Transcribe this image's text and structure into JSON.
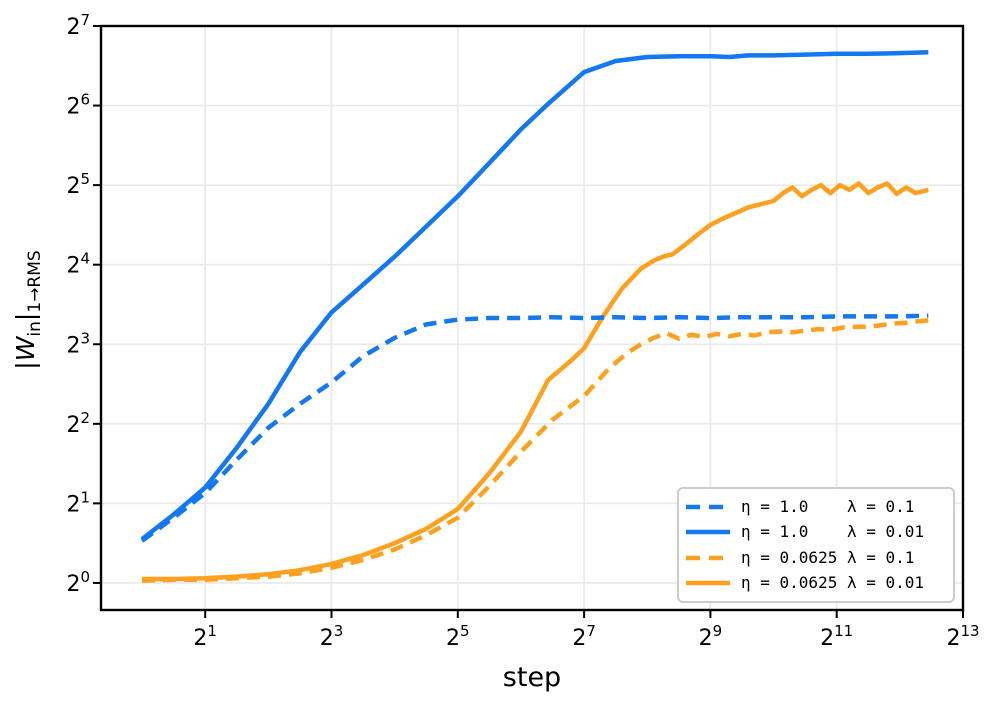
{
  "chart_data": {
    "type": "line",
    "title": "",
    "xlabel": "step",
    "ylabel": "|W_in|_{1→RMS}",
    "ylabel_parts": {
      "bar1": "|",
      "w": "W",
      "sub_in": "in",
      "bar2": "|",
      "sub_norm": "1→RMS"
    },
    "xscale": "log2",
    "yscale": "log2",
    "grid": true,
    "legend_position": "lower right",
    "tick_base": "2",
    "x_tick_exponents": [
      1,
      3,
      5,
      7,
      9,
      11,
      13
    ],
    "y_tick_exponents": [
      0,
      1,
      2,
      3,
      4,
      5,
      6,
      7
    ],
    "xlim_exp": [
      -0.65,
      13
    ],
    "ylim_exp": [
      -0.34,
      7
    ],
    "colors": {
      "blue": "#1478F0",
      "orange": "#FFA01E",
      "grid": "#E9E9E9",
      "spine": "#000000",
      "text": "#000000"
    },
    "series": [
      {
        "name": "eta-1.0-lambda-0.01",
        "label": "η = 1.0    λ = 0.01",
        "color_key": "blue",
        "style": "solid",
        "points_log2": [
          [
            0,
            0.55
          ],
          [
            0.5,
            0.86
          ],
          [
            1,
            1.2
          ],
          [
            1.5,
            1.7
          ],
          [
            2,
            2.25
          ],
          [
            2.5,
            2.9
          ],
          [
            3,
            3.4
          ],
          [
            3.5,
            3.75
          ],
          [
            4,
            4.1
          ],
          [
            4.5,
            4.48
          ],
          [
            5,
            4.86
          ],
          [
            5.5,
            5.28
          ],
          [
            6,
            5.7
          ],
          [
            6.4,
            6.0
          ],
          [
            7,
            6.42
          ],
          [
            7.5,
            6.56
          ],
          [
            8,
            6.61
          ],
          [
            8.5,
            6.62
          ],
          [
            9,
            6.62
          ],
          [
            9.3,
            6.61
          ],
          [
            9.6,
            6.63
          ],
          [
            10,
            6.63
          ],
          [
            10.5,
            6.64
          ],
          [
            11,
            6.65
          ],
          [
            11.5,
            6.65
          ],
          [
            12,
            6.66
          ],
          [
            12.45,
            6.67
          ]
        ]
      },
      {
        "name": "eta-0.0625-lambda-0.01",
        "label": "η = 0.0625 λ = 0.01",
        "color_key": "orange",
        "style": "solid",
        "points_log2": [
          [
            0,
            0.05
          ],
          [
            0.5,
            0.05
          ],
          [
            1,
            0.06
          ],
          [
            1.5,
            0.08
          ],
          [
            2,
            0.11
          ],
          [
            2.5,
            0.16
          ],
          [
            3,
            0.24
          ],
          [
            3.5,
            0.35
          ],
          [
            4,
            0.5
          ],
          [
            4.5,
            0.68
          ],
          [
            5,
            0.93
          ],
          [
            5.5,
            1.38
          ],
          [
            6,
            1.9
          ],
          [
            6.43,
            2.55
          ],
          [
            6.8,
            2.8
          ],
          [
            7,
            2.95
          ],
          [
            7.3,
            3.35
          ],
          [
            7.6,
            3.7
          ],
          [
            7.9,
            3.95
          ],
          [
            8.1,
            4.05
          ],
          [
            8.25,
            4.1
          ],
          [
            8.4,
            4.13
          ],
          [
            8.6,
            4.25
          ],
          [
            8.8,
            4.38
          ],
          [
            9,
            4.5
          ],
          [
            9.2,
            4.58
          ],
          [
            9.4,
            4.65
          ],
          [
            9.6,
            4.72
          ],
          [
            9.8,
            4.76
          ],
          [
            10,
            4.8
          ],
          [
            10.15,
            4.9
          ],
          [
            10.3,
            4.97
          ],
          [
            10.45,
            4.86
          ],
          [
            10.6,
            4.94
          ],
          [
            10.75,
            5.0
          ],
          [
            10.9,
            4.9
          ],
          [
            11.05,
            5.0
          ],
          [
            11.2,
            4.94
          ],
          [
            11.35,
            5.02
          ],
          [
            11.5,
            4.9
          ],
          [
            11.65,
            4.97
          ],
          [
            11.8,
            5.02
          ],
          [
            11.95,
            4.89
          ],
          [
            12.1,
            4.97
          ],
          [
            12.25,
            4.9
          ],
          [
            12.45,
            4.94
          ]
        ]
      },
      {
        "name": "eta-1.0-lambda-0.1",
        "label": "η = 1.0    λ = 0.1",
        "color_key": "blue",
        "style": "dashed",
        "points_log2": [
          [
            0,
            0.53
          ],
          [
            0.5,
            0.82
          ],
          [
            1,
            1.13
          ],
          [
            1.5,
            1.55
          ],
          [
            2,
            1.95
          ],
          [
            2.5,
            2.25
          ],
          [
            3,
            2.52
          ],
          [
            3.5,
            2.85
          ],
          [
            4,
            3.08
          ],
          [
            4.5,
            3.25
          ],
          [
            5,
            3.31
          ],
          [
            5.5,
            3.33
          ],
          [
            6,
            3.33
          ],
          [
            6.5,
            3.34
          ],
          [
            7,
            3.33
          ],
          [
            7.5,
            3.34
          ],
          [
            8,
            3.33
          ],
          [
            8.5,
            3.34
          ],
          [
            9,
            3.33
          ],
          [
            9.5,
            3.34
          ],
          [
            10,
            3.34
          ],
          [
            10.5,
            3.34
          ],
          [
            11,
            3.35
          ],
          [
            11.5,
            3.35
          ],
          [
            12,
            3.35
          ],
          [
            12.45,
            3.36
          ]
        ]
      },
      {
        "name": "eta-0.0625-lambda-0.1",
        "label": "η = 0.0625 λ = 0.1",
        "color_key": "orange",
        "style": "dashed",
        "points_log2": [
          [
            0,
            0.03
          ],
          [
            0.5,
            0.04
          ],
          [
            1,
            0.04
          ],
          [
            1.5,
            0.06
          ],
          [
            2,
            0.08
          ],
          [
            2.5,
            0.12
          ],
          [
            3,
            0.19
          ],
          [
            3.5,
            0.29
          ],
          [
            4,
            0.42
          ],
          [
            4.5,
            0.6
          ],
          [
            5,
            0.82
          ],
          [
            5.5,
            1.22
          ],
          [
            6,
            1.65
          ],
          [
            6.5,
            2.05
          ],
          [
            7,
            2.35
          ],
          [
            7.4,
            2.7
          ],
          [
            7.7,
            2.9
          ],
          [
            7.9,
            3.0
          ],
          [
            8.1,
            3.08
          ],
          [
            8.3,
            3.14
          ],
          [
            8.5,
            3.07
          ],
          [
            8.7,
            3.12
          ],
          [
            8.9,
            3.09
          ],
          [
            9.1,
            3.13
          ],
          [
            9.3,
            3.1
          ],
          [
            9.5,
            3.13
          ],
          [
            9.7,
            3.11
          ],
          [
            9.9,
            3.15
          ],
          [
            10.1,
            3.16
          ],
          [
            10.3,
            3.15
          ],
          [
            10.5,
            3.17
          ],
          [
            10.7,
            3.19
          ],
          [
            10.9,
            3.18
          ],
          [
            11.1,
            3.21
          ],
          [
            11.3,
            3.22
          ],
          [
            11.5,
            3.22
          ],
          [
            11.7,
            3.24
          ],
          [
            11.9,
            3.26
          ],
          [
            12.1,
            3.27
          ],
          [
            12.3,
            3.29
          ],
          [
            12.45,
            3.3
          ]
        ]
      }
    ],
    "legend_order": [
      "eta-1.0-lambda-0.1",
      "eta-1.0-lambda-0.01",
      "eta-0.0625-lambda-0.1",
      "eta-0.0625-lambda-0.01"
    ]
  }
}
